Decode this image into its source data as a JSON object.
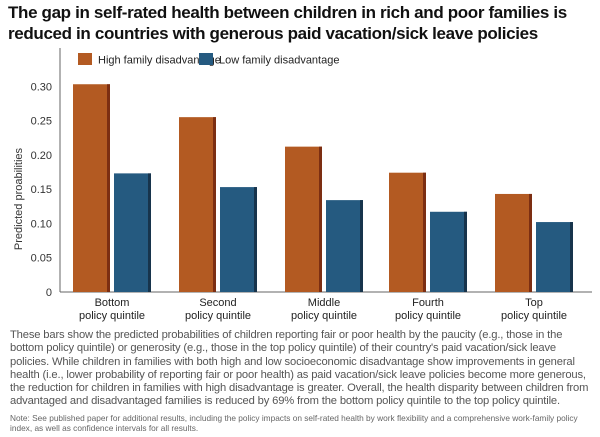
{
  "title": "The gap in self-rated health between children in rich and poor families is reduced in countries with generous paid vacation/sick leave policies",
  "caption": "These bars show the predicted probabilities of children reporting fair or poor health by the paucity (e.g., those in the bottom policy quintile) or generosity (e.g., those in the top policy quintile) of their country's paid vacation/sick leave policies. While children in families with both high and low socioeconomic disadvantage show improvements in general health (i.e., lower probability of reporting fair or poor health) as paid vacation/sick leave policies become more generous, the reduction for children in families with high disadvantage is greater. Overall, the health disparity between children from advantaged and disadvantaged families is reduced by 69% from the bottom policy quintile to the top policy quintile.",
  "note": "Note: See published paper for additional results, including the policy impacts on self-rated health by work flexibility and a comprehensive work-family policy index, as well as confidence intervals for all results.",
  "chart_data": {
    "type": "bar",
    "title": "The gap in self-rated health between children in rich and poor families is reduced in countries with generous paid vacation/sick leave policies",
    "xlabel": "",
    "ylabel": "Predicted proabilities",
    "ylim": [
      0,
      0.32
    ],
    "yticks": [
      "0",
      "0.05",
      "0.10",
      "0.15",
      "0.20",
      "0.25",
      "0.30"
    ],
    "grid": false,
    "legend_position": "top-left",
    "categories": [
      [
        "Bottom",
        "policy quintile"
      ],
      [
        "Second",
        "policy quintile"
      ],
      [
        "Middle",
        "policy quintile"
      ],
      [
        "Fourth",
        "policy quintile"
      ],
      [
        "Top",
        "policy quintile"
      ]
    ],
    "series": [
      {
        "name": "High family disadvantage",
        "color": "#b35a22",
        "values": [
          0.303,
          0.255,
          0.212,
          0.174,
          0.143
        ]
      },
      {
        "name": "Low family disadvantage",
        "color": "#255a80",
        "values": [
          0.173,
          0.153,
          0.134,
          0.117,
          0.102
        ]
      }
    ]
  }
}
